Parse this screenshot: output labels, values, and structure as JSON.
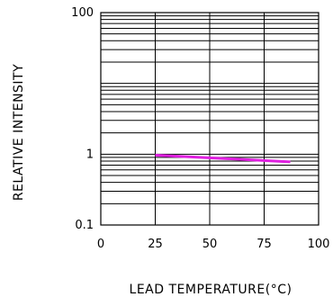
{
  "chart_data": {
    "type": "line",
    "xlabel": "LEAD TEMPERATURE(°C)",
    "ylabel": "RELATIVE INTENSITY",
    "x_scale": "linear",
    "y_scale": "log",
    "xlim": [
      0,
      100
    ],
    "ylim": [
      0.1,
      100
    ],
    "x_ticks": [
      0,
      25,
      50,
      75,
      100
    ],
    "x_tick_labels": [
      "0",
      "25",
      "50",
      "75",
      "100"
    ],
    "y_tick_labels": [
      "0.1",
      "1",
      "100"
    ],
    "y_tick_values": [
      0.1,
      1,
      100
    ],
    "grid": true,
    "series": [
      {
        "color": "#e020e0",
        "x": [
          25,
          87
        ],
        "y": [
          0.97,
          0.78
        ]
      }
    ]
  }
}
